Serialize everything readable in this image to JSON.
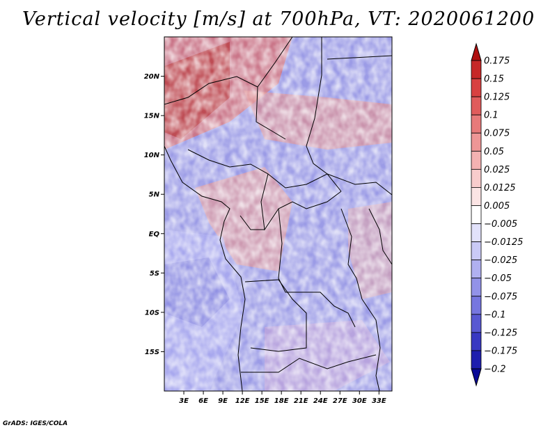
{
  "title": "Vertical velocity [m/s] at 700hPa, VT: 2020061200",
  "credit": "GrADS: IGES/COLA",
  "map": {
    "lon_range": [
      0,
      35
    ],
    "lat_range": [
      -20,
      25
    ],
    "x_ticks": [
      {
        "lon": 3,
        "label": "3E"
      },
      {
        "lon": 6,
        "label": "6E"
      },
      {
        "lon": 9,
        "label": "9E"
      },
      {
        "lon": 12,
        "label": "12E"
      },
      {
        "lon": 15,
        "label": "15E"
      },
      {
        "lon": 18,
        "label": "18E"
      },
      {
        "lon": 21,
        "label": "21E"
      },
      {
        "lon": 24,
        "label": "24E"
      },
      {
        "lon": 27,
        "label": "27E"
      },
      {
        "lon": 30,
        "label": "30E"
      },
      {
        "lon": 33,
        "label": "33E"
      }
    ],
    "y_ticks": [
      {
        "lat": 20,
        "label": "20N"
      },
      {
        "lat": 15,
        "label": "15N"
      },
      {
        "lat": 10,
        "label": "10N"
      },
      {
        "lat": 5,
        "label": "5N"
      },
      {
        "lat": 0,
        "label": "EQ"
      },
      {
        "lat": -5,
        "label": "5S"
      },
      {
        "lat": -10,
        "label": "10S"
      },
      {
        "lat": -15,
        "label": "15S"
      }
    ]
  },
  "colorbar": {
    "labels": [
      "0.175",
      "0.15",
      "0.125",
      "0.1",
      "0.075",
      "0.05",
      "0.025",
      "0.0125",
      "0.005",
      "−0.005",
      "−0.0125",
      "−0.025",
      "−0.05",
      "−0.075",
      "−0.1",
      "−0.125",
      "−0.175",
      "−0.2"
    ],
    "colors": [
      "#b01010",
      "#c62828",
      "#d84141",
      "#e05c5c",
      "#e77a7a",
      "#ee9696",
      "#f4b2b2",
      "#f8cccc",
      "#fbe4e4",
      "#ffffff",
      "#e2e2fb",
      "#cacaf6",
      "#b0b0f0",
      "#9292e8",
      "#7676df",
      "#5858d2",
      "#3838c2",
      "#1e1eae",
      "#0a0a96"
    ]
  }
}
